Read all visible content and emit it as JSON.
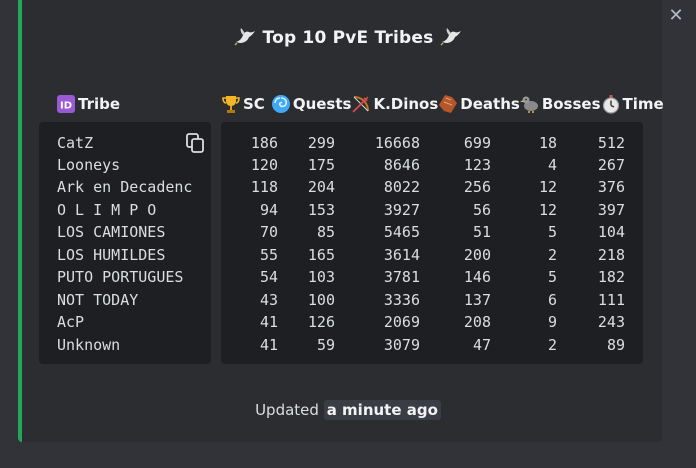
{
  "embed": {
    "accent": "#23a55a",
    "title": "Top 10 PvE Tribes",
    "title_icon": "dove-icon",
    "close_label": "✕"
  },
  "headers": {
    "tribe": {
      "label": "Tribe",
      "icon": "id-icon"
    },
    "sc": {
      "label": "SC",
      "icon": "trophy-icon"
    },
    "quests": {
      "label": "Quests",
      "icon": "cyclone-icon"
    },
    "kdinos": {
      "label": "K.Dinos",
      "icon": "bow-arrow-icon"
    },
    "deaths": {
      "label": "Deaths",
      "icon": "coffin-icon"
    },
    "bosses": {
      "label": "Bosses",
      "icon": "dodo-icon"
    },
    "time": {
      "label": "Time",
      "icon": "stopwatch-icon"
    }
  },
  "tribes": [
    "CatZ",
    "Looneys",
    "Ark en Decadenc",
    "O L I M P O",
    "LOS CAMIONES",
    "LOS HUMILDES",
    "PUTO PORTUGUES",
    "NOT TODAY",
    "AcP",
    "Unknown"
  ],
  "stats": [
    {
      "sc": "186",
      "quests": "299",
      "kdinos": "16668",
      "deaths": "699",
      "bosses": "18",
      "time": "512"
    },
    {
      "sc": "120",
      "quests": "175",
      "kdinos": "8646",
      "deaths": "123",
      "bosses": "4",
      "time": "267"
    },
    {
      "sc": "118",
      "quests": "204",
      "kdinos": "8022",
      "deaths": "256",
      "bosses": "12",
      "time": "376"
    },
    {
      "sc": "94",
      "quests": "153",
      "kdinos": "3927",
      "deaths": "56",
      "bosses": "12",
      "time": "397"
    },
    {
      "sc": "70",
      "quests": "85",
      "kdinos": "5465",
      "deaths": "51",
      "bosses": "5",
      "time": "104"
    },
    {
      "sc": "55",
      "quests": "165",
      "kdinos": "3614",
      "deaths": "200",
      "bosses": "2",
      "time": "218"
    },
    {
      "sc": "54",
      "quests": "103",
      "kdinos": "3781",
      "deaths": "146",
      "bosses": "5",
      "time": "182"
    },
    {
      "sc": "43",
      "quests": "100",
      "kdinos": "3336",
      "deaths": "137",
      "bosses": "6",
      "time": "111"
    },
    {
      "sc": "41",
      "quests": "126",
      "kdinos": "2069",
      "deaths": "208",
      "bosses": "9",
      "time": "243"
    },
    {
      "sc": "41",
      "quests": "59",
      "kdinos": "3079",
      "deaths": "47",
      "bosses": "2",
      "time": "89"
    }
  ],
  "footer": {
    "prefix": "Updated",
    "timestamp": "a minute ago"
  }
}
